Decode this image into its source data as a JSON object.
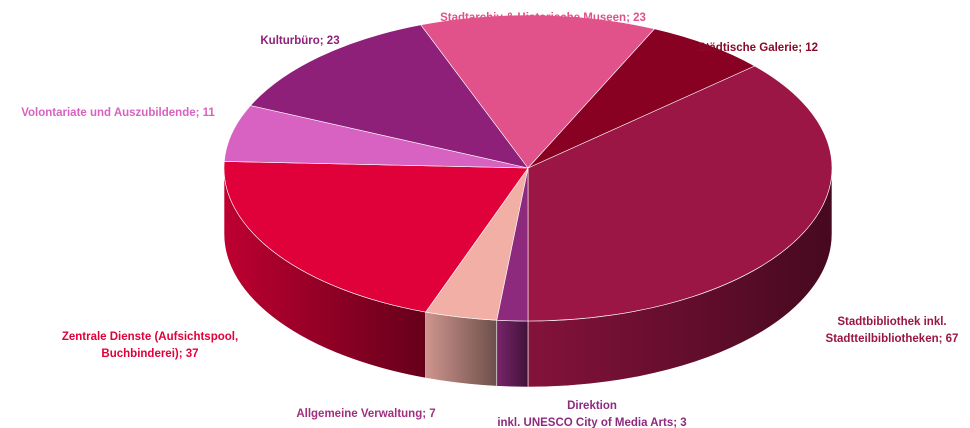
{
  "chart_data": {
    "type": "pie",
    "categories": [
      "Stadtbibliothek inkl. Stadtteilbibliotheken",
      "Direktion inkl. UNESCO City of Media Arts",
      "Allgemeine Verwaltung",
      "Zentrale Dienste (Aufsichtspool, Buchbinderei)",
      "Volontariate und Auszubildende",
      "Kulturbüro",
      "Stadtarchiv & Historische Museen",
      "Städtische Galerie"
    ],
    "values": [
      67,
      3,
      7,
      37,
      11,
      23,
      23,
      12
    ],
    "value_labels": [
      [
        "Stadtbibliothek inkl.",
        "Stadtteilbibliotheken; 67"
      ],
      [
        "Direktion",
        "inkl. UNESCO City of Media Arts; 3"
      ],
      [
        "Allgemeine Verwaltung; 7"
      ],
      [
        "Zentrale Dienste (Aufsichtspool,",
        "Buchbinderei); 37"
      ],
      [
        "Volontariate und Auszubildende; 11"
      ],
      [
        "Kulturbüro; 23"
      ],
      [
        "Stadtarchiv & Historische Museen; 23"
      ],
      [
        "Städtische Galerie; 12"
      ]
    ],
    "colors": [
      "#9b1545",
      "#8e2a7e",
      "#f2afa6",
      "#e0003a",
      "#d862c2",
      "#8f2079",
      "#e1528a",
      "#880022"
    ]
  }
}
